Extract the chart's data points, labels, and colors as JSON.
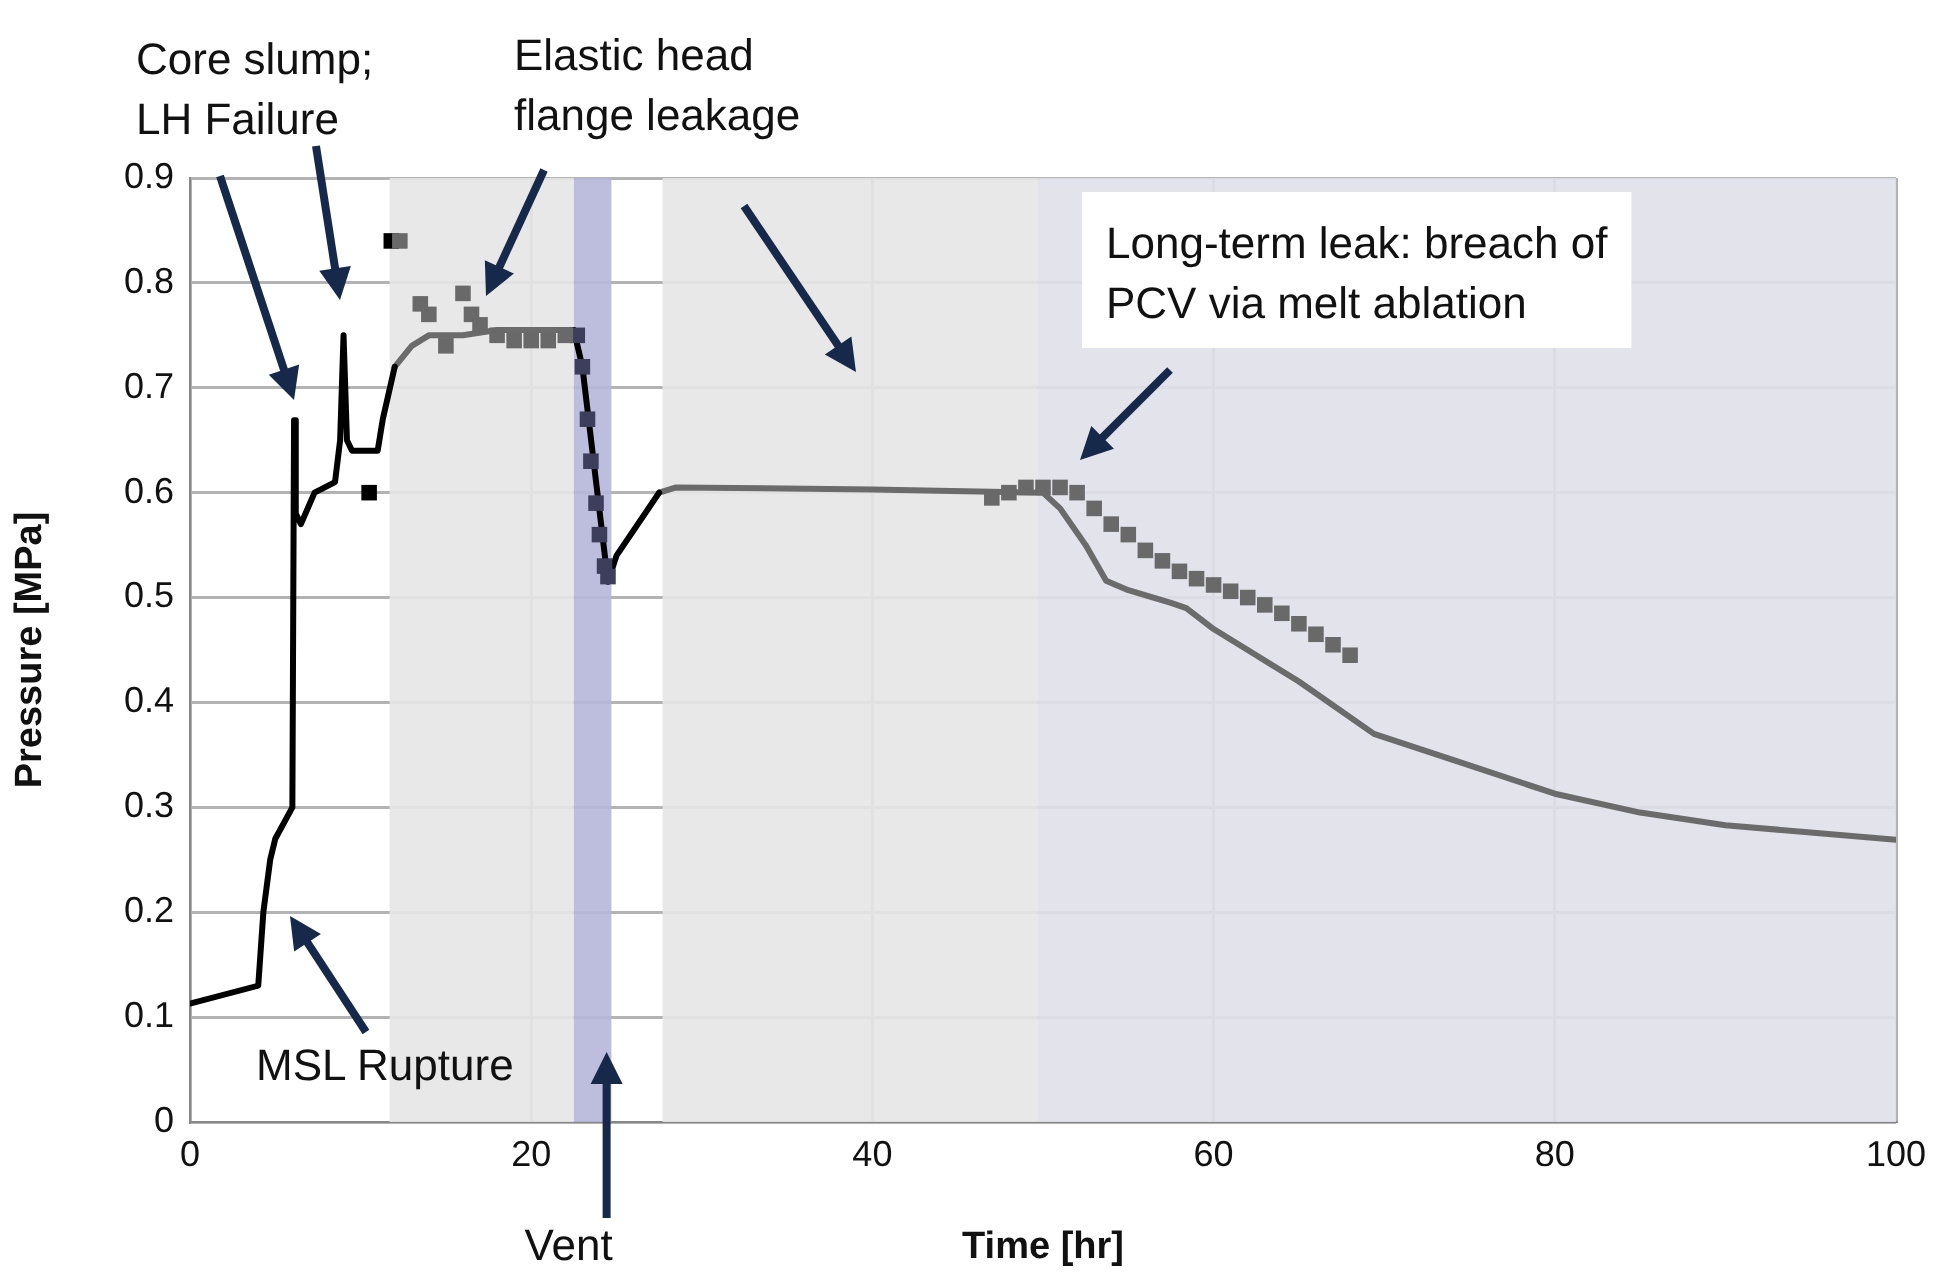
{
  "chart_data": {
    "type": "line",
    "xlabel": "Time [hr]",
    "ylabel": "Pressure [MPa]",
    "xlim": [
      0,
      100
    ],
    "xticks": [
      0,
      20,
      40,
      60,
      80,
      100
    ],
    "ylim": [
      0,
      0.9
    ],
    "yticks": [
      0,
      0.1,
      0.2,
      0.3,
      0.4,
      0.5,
      0.6,
      0.7,
      0.8,
      0.9
    ],
    "grid": true,
    "legend": false,
    "line_style": "solid",
    "bands": [
      {
        "axis": "x",
        "from": 11.7,
        "to": 22.5,
        "color": "#e6e6e6"
      },
      {
        "axis": "x",
        "from": 22.5,
        "to": 24.7,
        "color": "#b6b6da",
        "label": "Vent"
      },
      {
        "axis": "x",
        "from": 27.7,
        "to": 49.7,
        "color": "#e6e6e6"
      },
      {
        "axis": "x",
        "from": 49.7,
        "to": 100,
        "color": "#dfe0e9"
      }
    ],
    "annotations": [
      "Core slump; LH Failure",
      "Elastic head flange leakage",
      "Long-term leak: breach of PCV via melt ablation",
      "MSL Rupture"
    ],
    "series": [
      {
        "type": "line",
        "marker": "none",
        "color": "#000000",
        "x": [
          0,
          0.5,
          4,
          4.3,
          4.7,
          5,
          6,
          6.1,
          6.2,
          6.5,
          7.3,
          8.5,
          8.8,
          9,
          9.2,
          9.5,
          10.5,
          11,
          11.3,
          12,
          12.1,
          22.5,
          23,
          24.5,
          25,
          27.5
        ],
        "values": [
          0.113,
          0.115,
          0.13,
          0.2,
          0.25,
          0.27,
          0.3,
          0.669,
          0.58,
          0.57,
          0.6,
          0.61,
          0.65,
          0.75,
          0.65,
          0.64,
          0.64,
          0.64,
          0.67,
          0.72,
          null,
          0.755,
          0.72,
          0.515,
          0.54,
          0.6
        ]
      },
      {
        "type": "line",
        "marker": "none",
        "color": "#6b6b6b",
        "x": [
          12,
          13,
          14,
          16,
          18,
          22.5,
          22.6,
          27.5,
          28.5,
          40,
          50,
          51,
          52.5,
          53.7,
          55,
          57.5,
          58.4,
          60,
          62,
          65,
          69.4,
          75,
          80,
          85,
          90,
          95,
          100
        ],
        "values": [
          0.72,
          0.74,
          0.75,
          0.75,
          0.755,
          0.755,
          null,
          0.6,
          0.605,
          0.603,
          0.6,
          0.585,
          0.55,
          0.516,
          0.507,
          0.495,
          0.49,
          0.47,
          0.45,
          0.42,
          0.37,
          0.34,
          0.313,
          0.295,
          0.283,
          0.276,
          0.269
        ]
      },
      {
        "type": "scatter",
        "marker": "square",
        "color": "#696969",
        "x": [
          12.3,
          13.5,
          14,
          15,
          16,
          16.5,
          17,
          18,
          19,
          20,
          21,
          22,
          47,
          48,
          49,
          50,
          51,
          52,
          53,
          54,
          55,
          56,
          57,
          58,
          59,
          60,
          61,
          62,
          63,
          64,
          65,
          66,
          67,
          68
        ],
        "values": [
          0.84,
          0.78,
          0.77,
          0.74,
          0.79,
          0.77,
          0.76,
          0.75,
          0.745,
          0.745,
          0.745,
          0.75,
          0.595,
          0.6,
          0.605,
          0.605,
          0.605,
          0.6,
          0.585,
          0.57,
          0.56,
          0.545,
          0.535,
          0.525,
          0.518,
          0.512,
          0.506,
          0.5,
          0.493,
          0.485,
          0.475,
          0.465,
          0.455,
          0.445
        ]
      },
      {
        "type": "scatter",
        "marker": "square",
        "color": "#3d3d5c",
        "x": [
          22.7,
          23,
          23.3,
          23.5,
          23.8,
          24,
          24.3,
          24.5
        ],
        "values": [
          0.75,
          0.72,
          0.67,
          0.63,
          0.59,
          0.56,
          0.53,
          0.52
        ]
      },
      {
        "type": "scatter",
        "marker": "square",
        "color": "#000000",
        "x": [
          11.8,
          10.5
        ],
        "values": [
          0.84,
          0.6
        ]
      }
    ]
  }
}
